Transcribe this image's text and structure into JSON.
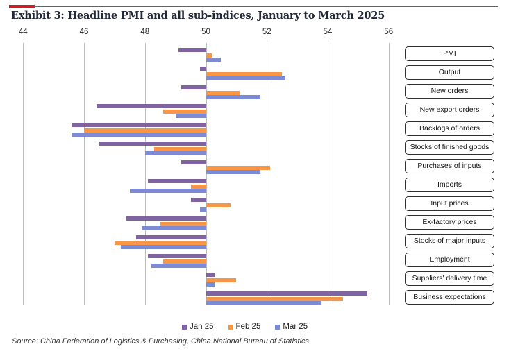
{
  "header": {
    "title": "Exhibit 3: Headline PMI and all sub-indices, January to March 2025",
    "accent_color": "#c0232c",
    "accent_line_color": "#cc3340"
  },
  "chart_data": {
    "type": "bar",
    "orientation": "horizontal",
    "baseline": 50,
    "grid": true,
    "grid_color": "#bdbdbd",
    "legend_position": "bottom",
    "axis": {
      "min": 44,
      "max": 56,
      "ticks": [
        44,
        46,
        48,
        50,
        52,
        54,
        56
      ],
      "position": "top"
    },
    "categories": [
      "PMI",
      "Output",
      "New orders",
      "New export orders",
      "Backlogs of orders",
      "Stocks of finished goods",
      "Purchases of inputs",
      "Imports",
      "Input prices",
      "Ex-factory prices",
      "Stocks of major inputs",
      "Employment",
      "Suppliers' delivery time",
      "Business expectations"
    ],
    "series": [
      {
        "name": "Jan 25",
        "color": "#8064A2",
        "values": [
          49.1,
          49.8,
          49.2,
          46.4,
          45.6,
          46.5,
          49.2,
          48.1,
          49.5,
          47.4,
          47.7,
          48.1,
          50.3,
          55.3
        ]
      },
      {
        "name": "Feb 25",
        "color": "#F79646",
        "values": [
          50.2,
          52.5,
          51.1,
          48.6,
          46.0,
          48.3,
          52.1,
          49.5,
          50.8,
          48.5,
          47.0,
          48.6,
          51.0,
          54.5
        ]
      },
      {
        "name": "Mar 25",
        "color": "#7D8BD4",
        "values": [
          50.5,
          52.6,
          51.8,
          49.0,
          45.6,
          48.0,
          51.8,
          47.5,
          49.8,
          47.9,
          47.2,
          48.2,
          50.3,
          53.8
        ]
      }
    ]
  },
  "footer": {
    "source": "Source: China Federation of Logistics & Purchasing, China National Bureau of Statistics"
  }
}
